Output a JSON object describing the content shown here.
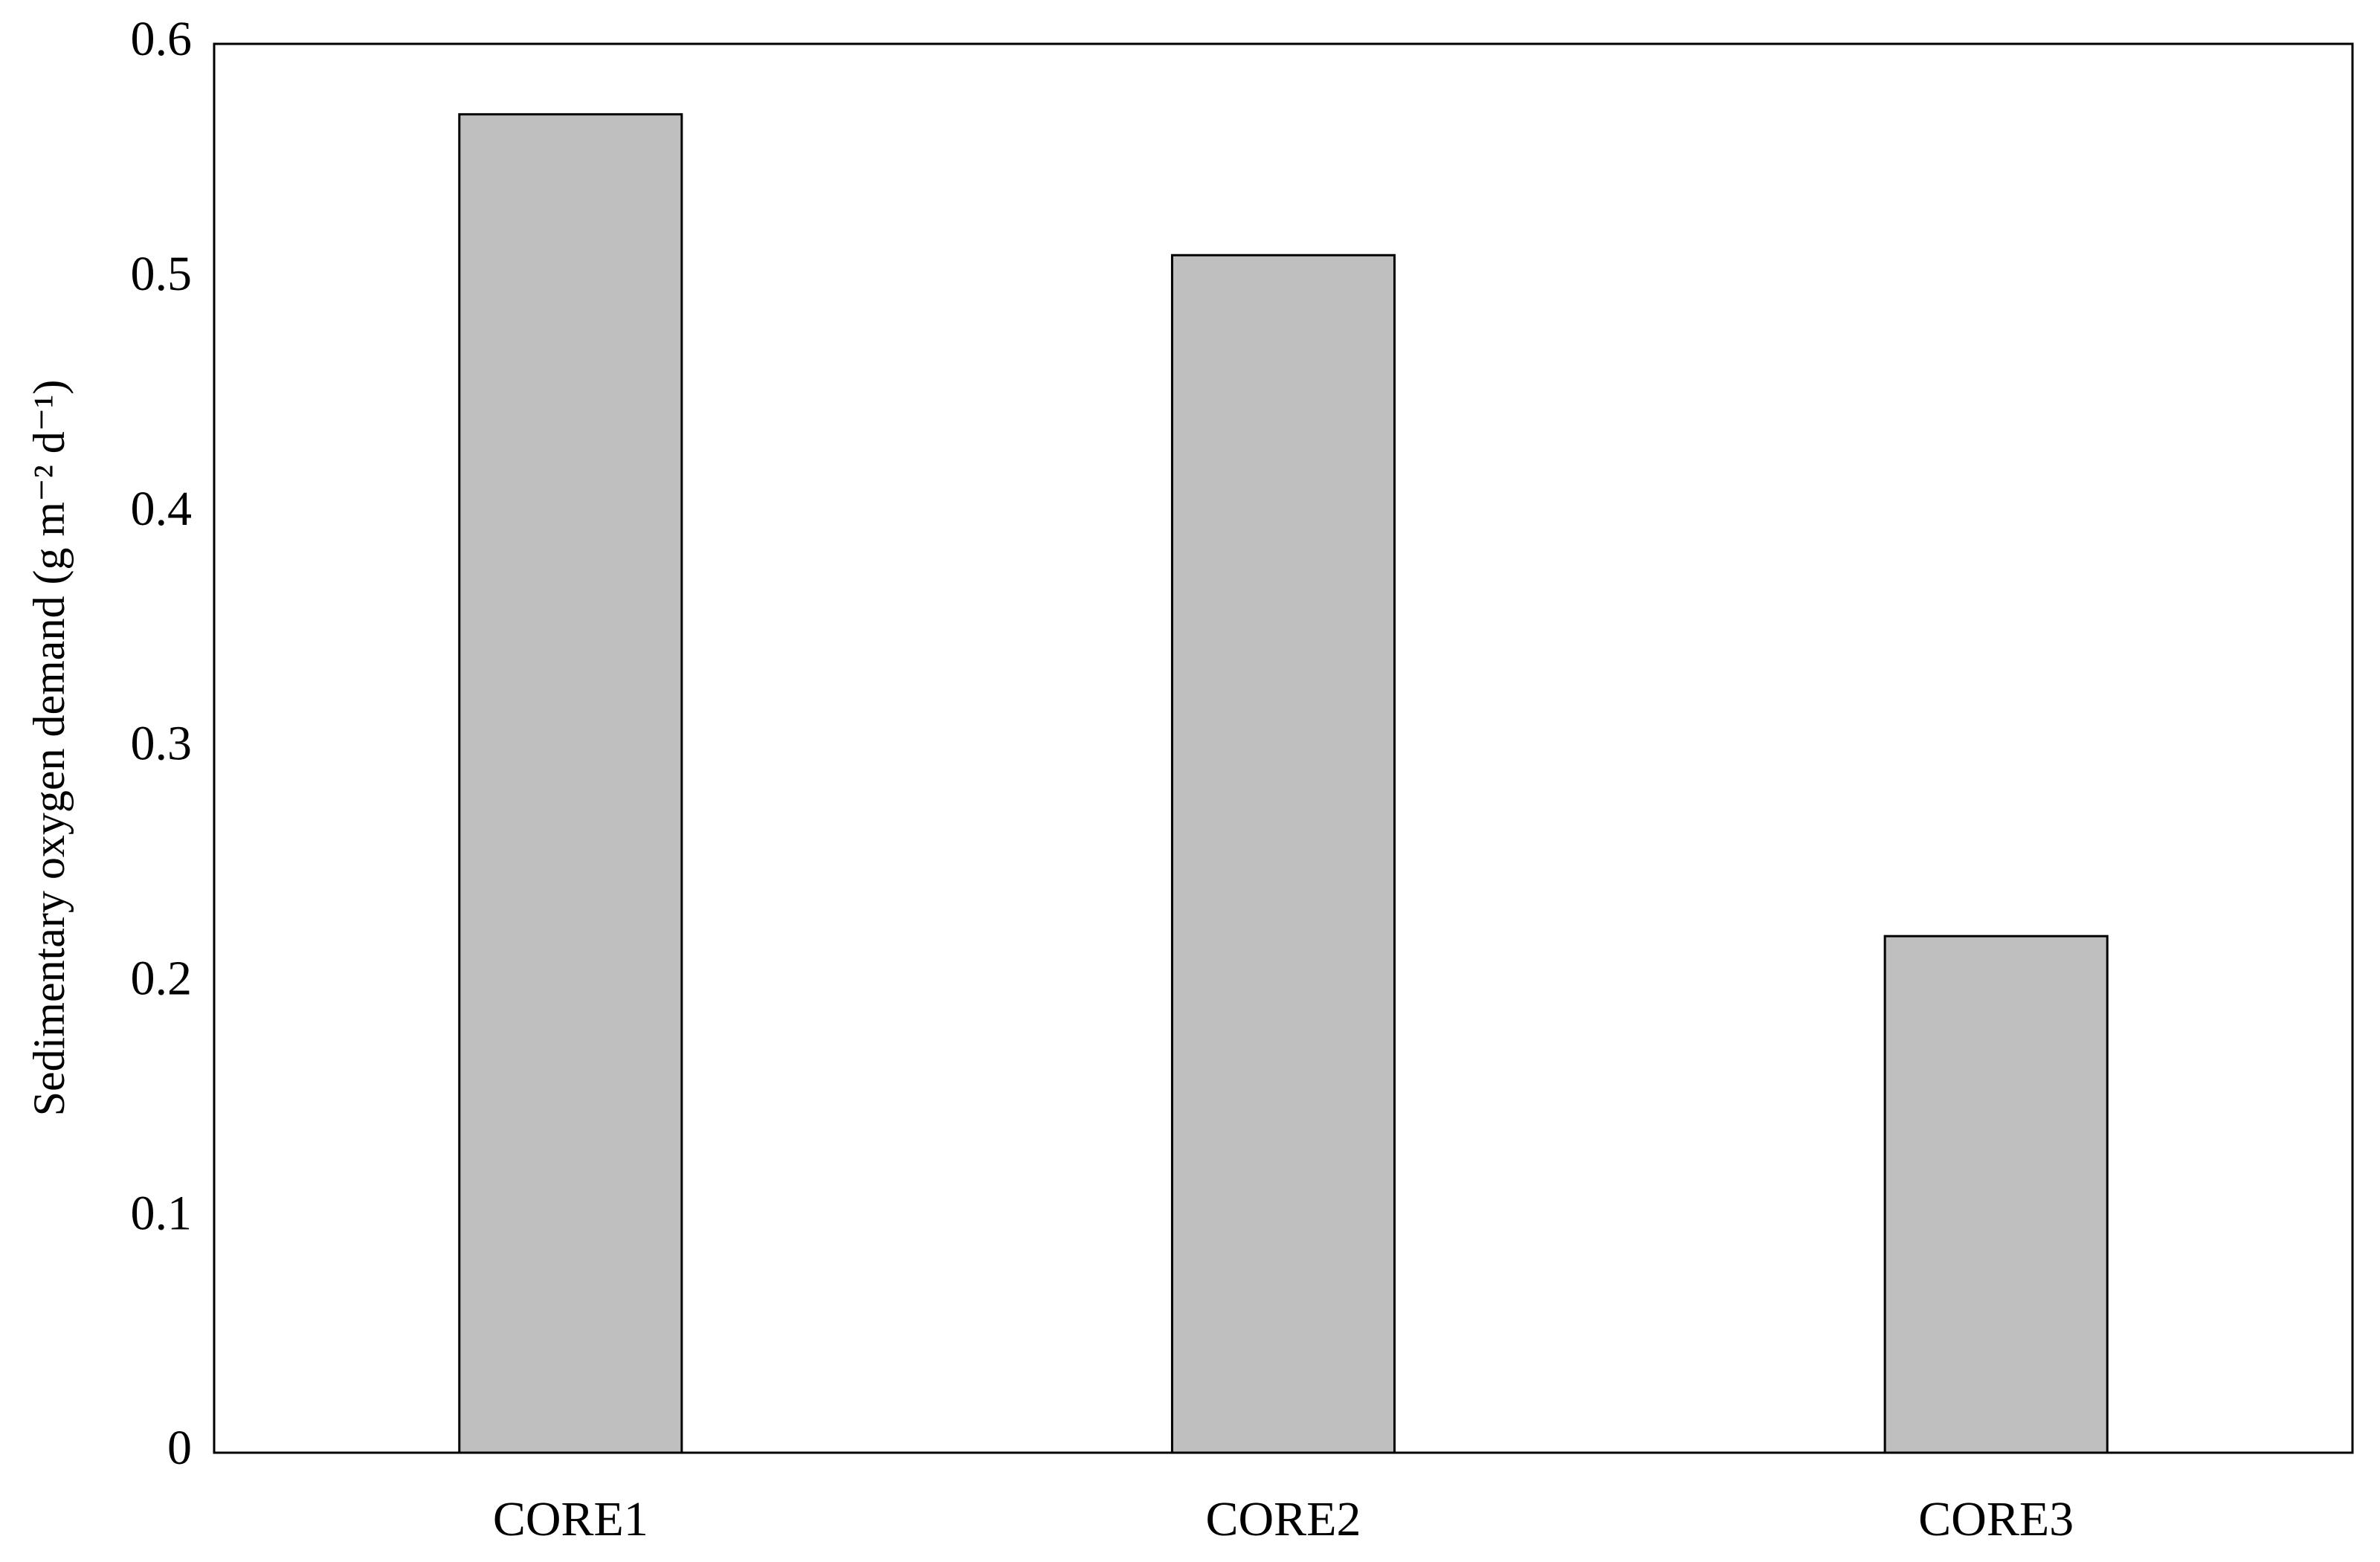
{
  "chart_data": {
    "type": "bar",
    "y_label": "Sedimentary oxygen demand (g m⁻² d⁻¹)",
    "categories": [
      "CORE1",
      "CORE2",
      "CORE3"
    ],
    "values": [
      0.57,
      0.51,
      0.22
    ],
    "color": "#bfbfbf",
    "ylim": [
      0,
      0.6
    ],
    "yticks": [
      0,
      0.1,
      0.2,
      0.3,
      0.4,
      0.5,
      0.6
    ],
    "grid": false
  }
}
